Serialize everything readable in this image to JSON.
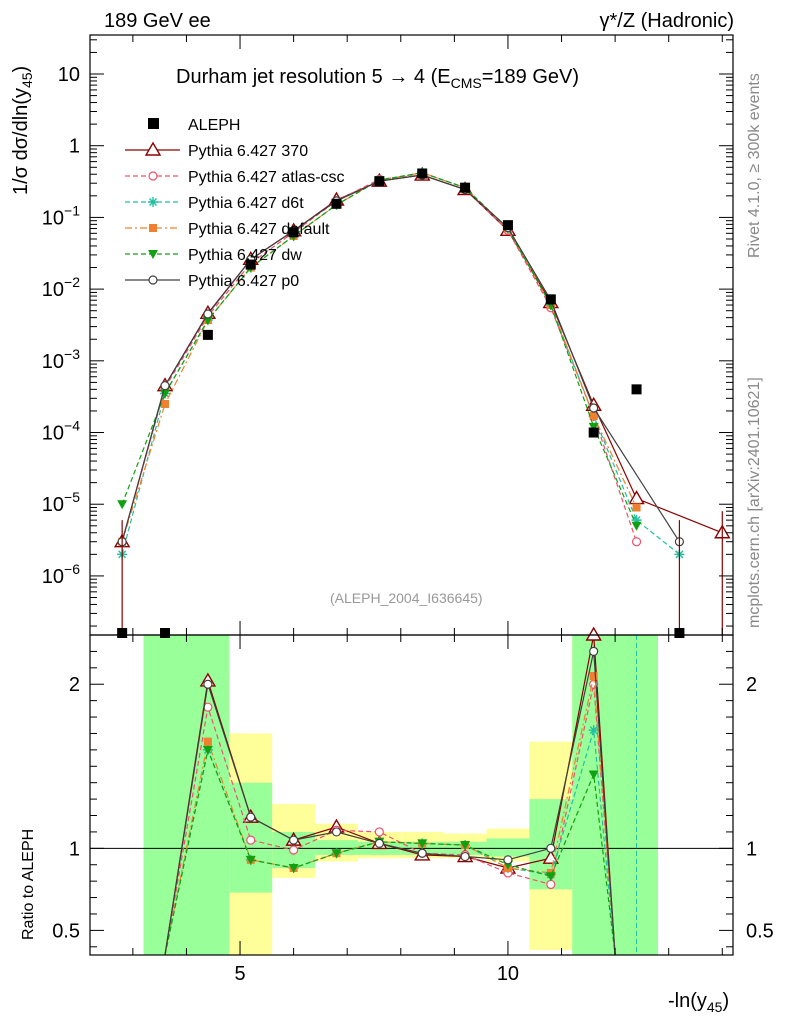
{
  "header": {
    "left": "189 GeV ee",
    "right": "γ*/Z (Hadronic)"
  },
  "side_labels": {
    "rivet": "Rivet 4.1.0, ≥ 300k events",
    "mcplots": "mcplots.cern.ch [arXiv:2401.10621]"
  },
  "chart_data": [
    {
      "panel": "main",
      "type": "line",
      "title": "Durham jet resolution 5→ 4 (E_CMS=189 GeV)",
      "title_parts": {
        "main": "Durham jet resolution 5",
        "arrow": "→",
        "mid": " 4 (E",
        "sub": "CMS",
        "end": "=189 GeV)"
      },
      "ylabel": "1/σ dσ/dln(y45)",
      "ylabel_parts": {
        "main": "1/σ  dσ/dln(y",
        "sub": "45",
        "end": ")"
      },
      "yscale": "log",
      "ylim": [
        1.5e-07,
        35
      ],
      "xlim": [
        2.2,
        14.2
      ],
      "y_ticks": [
        {
          "v": 10,
          "base": "10",
          "exp": ""
        },
        {
          "v": 1,
          "base": "1",
          "exp": ""
        },
        {
          "v": 0.1,
          "base": "10",
          "exp": "−1"
        },
        {
          "v": 0.01,
          "base": "10",
          "exp": "−2"
        },
        {
          "v": 0.001,
          "base": "10",
          "exp": "−3"
        },
        {
          "v": 0.0001,
          "base": "10",
          "exp": "−4"
        },
        {
          "v": 1e-05,
          "base": "10",
          "exp": "−5"
        },
        {
          "v": 1e-06,
          "base": "10",
          "exp": "−6"
        }
      ],
      "watermark": "(ALEPH_2004_I636645)",
      "legend_position": "top-left",
      "data": {
        "name": "ALEPH",
        "color": "#000000",
        "x": [
          2.8,
          3.6,
          4.4,
          5.2,
          6.0,
          6.8,
          7.6,
          8.4,
          9.2,
          10.0,
          10.8,
          11.6,
          12.4,
          13.2
        ],
        "y": [
          1.6e-07,
          1.6e-07,
          0.0023,
          0.022,
          0.062,
          0.155,
          0.32,
          0.41,
          0.26,
          0.078,
          0.0072,
          0.0001,
          0.0004,
          1.6e-07
        ]
      },
      "series": [
        {
          "name": "Pythia 6.427 370",
          "color": "#8b0000",
          "dash": "",
          "marker": "open-triangle",
          "x": [
            2.8,
            3.6,
            4.4,
            5.2,
            6.0,
            6.8,
            7.6,
            8.4,
            9.2,
            10.0,
            10.8,
            11.6,
            12.4,
            13.2,
            14.0
          ],
          "y": [
            3e-06,
            0.00045,
            0.0046,
            0.026,
            0.065,
            0.175,
            0.32,
            0.39,
            0.245,
            0.066,
            0.0065,
            0.00024,
            1.2e-05,
            null,
            4e-06
          ]
        },
        {
          "name": "Pythia 6.427 atlas-csc",
          "color": "#f0506e",
          "dash": "5,3",
          "marker": "open-circle",
          "x": [
            2.8,
            3.6,
            4.4,
            5.2,
            6.0,
            6.8,
            7.6,
            8.4,
            9.2,
            10.0,
            10.8,
            11.6,
            12.4
          ],
          "y": [
            3e-06,
            0.00042,
            0.0042,
            0.023,
            0.062,
            0.17,
            0.34,
            0.39,
            0.245,
            0.066,
            0.0055,
            0.00017,
            3e-06
          ]
        },
        {
          "name": "Pythia 6.427 d6t",
          "color": "#20c0a0",
          "dash": "5,3",
          "marker": "star",
          "x": [
            2.8,
            3.6,
            4.4,
            5.2,
            6.0,
            6.8,
            7.6,
            8.4,
            9.2,
            10.0,
            10.8,
            11.6,
            12.4,
            13.2
          ],
          "y": [
            2e-06,
            0.00035,
            0.0037,
            0.02,
            0.055,
            0.15,
            0.33,
            0.42,
            0.26,
            0.07,
            0.006,
            0.00017,
            6e-06,
            2e-06
          ]
        },
        {
          "name": "Pythia 6.427 default",
          "color": "#f08030",
          "dash": "7,3,2,3",
          "marker": "square",
          "x": [
            2.8,
            3.6,
            4.4,
            5.2,
            6.0,
            6.8,
            7.6,
            8.4,
            9.2,
            10.0,
            10.8,
            11.6,
            12.4
          ],
          "y": [
            3e-06,
            0.00025,
            0.0037,
            0.02,
            0.055,
            0.15,
            0.33,
            0.42,
            0.26,
            0.07,
            0.006,
            0.00017,
            9e-06
          ]
        },
        {
          "name": "Pythia 6.427 dw",
          "color": "#10a010",
          "dash": "5,3",
          "marker": "down-triangle",
          "x": [
            2.8,
            3.6,
            4.4,
            5.2,
            6.0,
            6.8,
            7.6,
            8.4,
            9.2,
            10.0,
            10.8,
            11.6,
            12.4
          ],
          "y": [
            1e-05,
            0.00035,
            0.0037,
            0.02,
            0.055,
            0.15,
            0.33,
            0.42,
            0.26,
            0.07,
            0.006,
            0.00012,
            5e-06
          ]
        },
        {
          "name": "Pythia 6.427 p0",
          "color": "#404040",
          "dash": "",
          "marker": "open-circle",
          "x": [
            2.8,
            3.6,
            4.4,
            5.2,
            6.0,
            6.8,
            7.6,
            8.4,
            9.2,
            10.0,
            10.8,
            11.6,
            13.2
          ],
          "y": [
            3e-06,
            0.00045,
            0.0045,
            0.026,
            0.065,
            0.17,
            0.32,
            0.39,
            0.245,
            0.072,
            0.007,
            0.00022,
            3e-06
          ]
        }
      ]
    },
    {
      "panel": "ratio",
      "type": "line",
      "ylabel": "Ratio to ALEPH",
      "ylim": [
        0.35,
        2.3
      ],
      "xlim": [
        2.2,
        14.2
      ],
      "x_ticks": [
        5,
        10
      ],
      "y_ticks": [
        0.5,
        1,
        2
      ],
      "y_tick_labels": [
        "0.5",
        "1",
        "2"
      ],
      "xlabel": "-ln(y45)",
      "xlabel_parts": {
        "main": "-ln(y",
        "sub": "45",
        "end": ")"
      },
      "bands": {
        "edges": [
          3.2,
          4.8,
          5.6,
          6.4,
          7.2,
          8.0,
          8.8,
          9.6,
          10.4,
          11.2,
          12.0,
          12.8
        ],
        "yellow": [
          [
            0.35,
            2.3
          ],
          [
            0.35,
            1.7
          ],
          [
            0.82,
            1.27
          ],
          [
            0.92,
            1.15
          ],
          [
            0.94,
            1.1
          ],
          [
            0.94,
            1.1
          ],
          [
            0.94,
            1.09
          ],
          [
            0.92,
            1.12
          ],
          [
            0.38,
            1.65
          ],
          [
            0.35,
            2.3
          ],
          [
            0.35,
            2.3
          ]
        ],
        "green": [
          [
            0.35,
            2.3
          ],
          [
            0.73,
            1.4
          ],
          [
            0.88,
            1.1
          ],
          [
            0.96,
            1.05
          ],
          [
            0.96,
            1.04
          ],
          [
            0.96,
            1.04
          ],
          [
            0.96,
            1.04
          ],
          [
            0.95,
            1.06
          ],
          [
            0.75,
            1.3
          ],
          [
            0.35,
            2.3
          ],
          [
            0.35,
            2.3
          ]
        ]
      },
      "series": [
        {
          "name": "370",
          "x": [
            3.6,
            4.4,
            5.2,
            6.0,
            6.8,
            7.6,
            8.4,
            9.2,
            10.0,
            10.8,
            11.6,
            12.0
          ],
          "y": [
            0.2,
            2.02,
            1.19,
            1.05,
            1.13,
            1.03,
            0.96,
            0.95,
            0.88,
            0.94,
            2.3,
            0.2
          ]
        },
        {
          "name": "atlas-csc",
          "x": [
            3.6,
            4.4,
            5.2,
            6.0,
            6.8,
            7.6,
            8.4,
            9.2,
            10.0,
            10.8,
            11.6,
            12.0
          ],
          "y": [
            0.2,
            1.86,
            1.05,
            0.99,
            1.11,
            1.1,
            0.97,
            0.96,
            0.85,
            0.78,
            2.0,
            0.2
          ]
        },
        {
          "name": "d6t",
          "x": [
            3.6,
            4.4,
            5.2,
            6.0,
            6.8,
            7.6,
            8.4,
            9.2,
            10.0,
            10.8,
            11.6,
            12.0
          ],
          "y": [
            0.2,
            1.6,
            0.93,
            0.88,
            0.97,
            1.04,
            1.03,
            1.02,
            0.88,
            0.84,
            1.72,
            0.2
          ]
        },
        {
          "name": "default",
          "x": [
            3.6,
            4.4,
            5.2,
            6.0,
            6.8,
            7.6,
            8.4,
            9.2,
            10.0,
            10.8,
            11.6,
            12.0
          ],
          "y": [
            0.2,
            1.65,
            0.93,
            0.88,
            0.97,
            1.04,
            1.03,
            1.02,
            0.88,
            0.85,
            2.05,
            0.2
          ]
        },
        {
          "name": "dw",
          "x": [
            3.6,
            4.4,
            5.2,
            6.0,
            6.8,
            7.6,
            8.4,
            9.2,
            10.0,
            10.8,
            11.6,
            12.0
          ],
          "y": [
            0.2,
            1.6,
            0.93,
            0.88,
            0.97,
            1.04,
            1.03,
            1.02,
            0.9,
            0.83,
            1.45,
            0.2
          ]
        },
        {
          "name": "p0",
          "x": [
            3.6,
            4.4,
            5.2,
            6.0,
            6.8,
            7.6,
            8.4,
            9.2,
            10.0,
            10.8,
            11.6,
            12.0
          ],
          "y": [
            0.2,
            2.0,
            1.19,
            1.05,
            1.1,
            1.03,
            0.97,
            0.95,
            0.93,
            1.0,
            2.2,
            0.2
          ]
        }
      ],
      "vline_x": 12.4
    }
  ]
}
